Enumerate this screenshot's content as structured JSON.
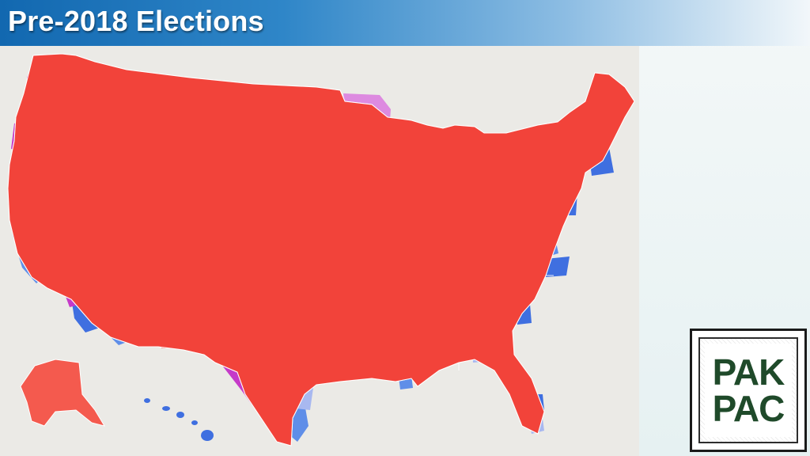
{
  "header": {
    "title": "Pre-2018 Elections"
  },
  "logo": {
    "line1": "PAK",
    "line2": "PAC"
  },
  "map": {
    "type": "us-congressional-districts-choropleth",
    "colors": {
      "safe_republican": "#f2433a",
      "likely_republican": "#f45a4e",
      "lean_republican": "#f78a86",
      "swing_purple": "#c53ac8",
      "lean_purple": "#dd8ae0",
      "lean_democrat": "#a8b8f0",
      "likely_democrat": "#5f8ee8",
      "safe_democrat": "#3f6fe0",
      "ocean": "#ebeae6"
    }
  }
}
